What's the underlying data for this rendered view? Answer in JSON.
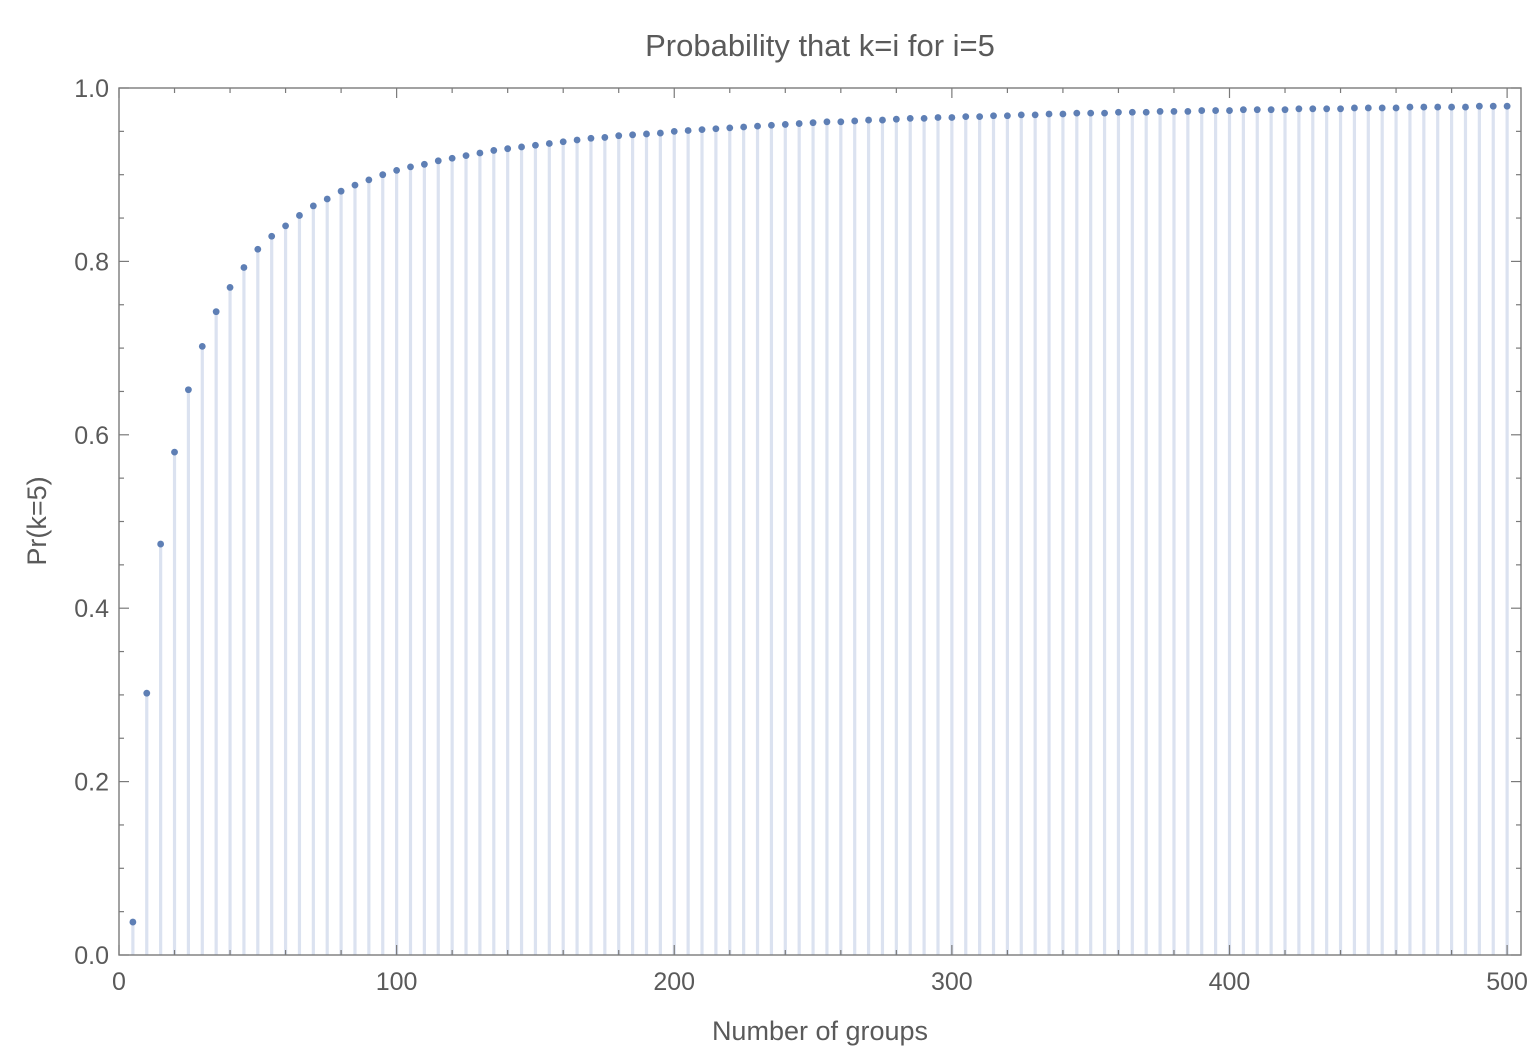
{
  "chart_data": {
    "type": "scatter",
    "title": "Probability that k=i for i=5",
    "xlabel": "Number of groups",
    "ylabel": "Pr(k=5)",
    "xlim": [
      0,
      505
    ],
    "ylim": [
      0,
      1
    ],
    "x_ticks": [
      0,
      100,
      200,
      300,
      400,
      500
    ],
    "x_tick_labels": [
      "0",
      "100",
      "200",
      "300",
      "400",
      "500"
    ],
    "y_ticks": [
      0,
      0.2,
      0.4,
      0.6,
      0.8,
      1.0
    ],
    "y_tick_labels": [
      "0.0",
      "0.2",
      "0.4",
      "0.6",
      "0.8",
      "1.0"
    ],
    "grid": false,
    "filling": "axis",
    "colors": {
      "point": "#5e7fb5",
      "stem": "#dbe2f0",
      "frame": "#7a7a7a",
      "text": "#5a5a5a"
    },
    "series": [
      {
        "x": [
          5,
          10,
          15,
          20,
          25,
          30,
          35,
          40,
          45,
          50,
          55,
          60,
          65,
          70,
          75,
          80,
          85,
          90,
          95,
          100,
          105,
          110,
          115,
          120,
          125,
          130,
          135,
          140,
          145,
          150,
          155,
          160,
          165,
          170,
          175,
          180,
          185,
          190,
          195,
          200,
          205,
          210,
          215,
          220,
          225,
          230,
          235,
          240,
          245,
          250,
          255,
          260,
          265,
          270,
          275,
          280,
          285,
          290,
          295,
          300,
          305,
          310,
          315,
          320,
          325,
          330,
          335,
          340,
          345,
          350,
          355,
          360,
          365,
          370,
          375,
          380,
          385,
          390,
          395,
          400,
          405,
          410,
          415,
          420,
          425,
          430,
          435,
          440,
          445,
          450,
          455,
          460,
          465,
          470,
          475,
          480,
          485,
          490,
          495,
          500
        ],
        "values": [
          0.038,
          0.302,
          0.474,
          0.58,
          0.652,
          0.702,
          0.742,
          0.77,
          0.793,
          0.814,
          0.829,
          0.841,
          0.853,
          0.864,
          0.872,
          0.881,
          0.888,
          0.894,
          0.9,
          0.905,
          0.909,
          0.912,
          0.916,
          0.919,
          0.922,
          0.925,
          0.928,
          0.93,
          0.932,
          0.934,
          0.936,
          0.938,
          0.94,
          0.942,
          0.943,
          0.945,
          0.946,
          0.947,
          0.948,
          0.95,
          0.951,
          0.952,
          0.953,
          0.954,
          0.955,
          0.956,
          0.957,
          0.958,
          0.959,
          0.96,
          0.961,
          0.961,
          0.962,
          0.963,
          0.963,
          0.964,
          0.965,
          0.965,
          0.966,
          0.966,
          0.967,
          0.967,
          0.968,
          0.968,
          0.969,
          0.969,
          0.97,
          0.97,
          0.971,
          0.971,
          0.971,
          0.972,
          0.972,
          0.972,
          0.973,
          0.973,
          0.973,
          0.974,
          0.974,
          0.974,
          0.975,
          0.975,
          0.975,
          0.975,
          0.976,
          0.976,
          0.976,
          0.976,
          0.977,
          0.977,
          0.977,
          0.977,
          0.978,
          0.978,
          0.978,
          0.978,
          0.978,
          0.979,
          0.979,
          0.979
        ]
      }
    ]
  }
}
